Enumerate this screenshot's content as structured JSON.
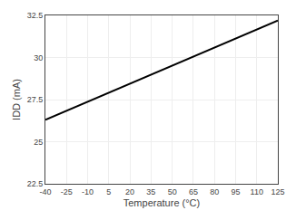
{
  "chart_data": {
    "type": "line",
    "x": [
      -40,
      125
    ],
    "values": [
      26.3,
      32.2
    ],
    "color": "#000000",
    "xlabel": "Temperature (°C)",
    "ylabel": "IDD (mA)",
    "xlim": [
      -40,
      125
    ],
    "ylim": [
      22.5,
      32.5
    ],
    "xticks": [
      -40,
      -25,
      -10,
      5,
      20,
      35,
      50,
      65,
      80,
      95,
      110,
      125
    ],
    "yticks": [
      22.5,
      25,
      27.5,
      30,
      32.5
    ],
    "grid": true
  }
}
